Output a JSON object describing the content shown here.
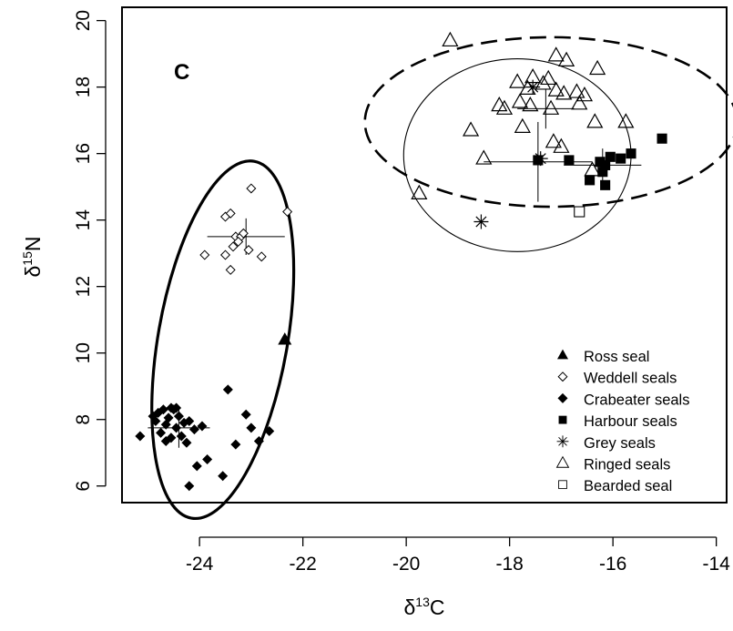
{
  "chart_data": {
    "type": "scatter",
    "panel_label": "C",
    "xlabel": {
      "base": "δ",
      "sup": "13",
      "rest": "C"
    },
    "ylabel": {
      "base": "δ",
      "sup": "15",
      "rest": "N"
    },
    "xlim": [
      -25.5,
      -13.8
    ],
    "ylim": [
      5.5,
      20.4
    ],
    "xticks": [
      -24,
      -22,
      -20,
      -18,
      -16,
      -14
    ],
    "yticks": [
      6,
      8,
      10,
      12,
      14,
      16,
      18,
      20
    ],
    "grid": false,
    "legend_position": "bottom-right",
    "series": [
      {
        "name": "Ross seal",
        "marker": "filled-triangle",
        "points": [
          [
            -22.35,
            10.4
          ]
        ]
      },
      {
        "name": "Weddell seals",
        "marker": "open-diamond",
        "points": [
          [
            -23.0,
            14.95
          ],
          [
            -22.3,
            14.25
          ],
          [
            -23.5,
            14.1
          ],
          [
            -23.4,
            14.2
          ],
          [
            -23.3,
            13.5
          ],
          [
            -23.2,
            13.5
          ],
          [
            -23.15,
            13.6
          ],
          [
            -23.35,
            13.2
          ],
          [
            -23.05,
            13.1
          ],
          [
            -23.9,
            12.95
          ],
          [
            -23.5,
            12.95
          ],
          [
            -22.8,
            12.9
          ],
          [
            -23.4,
            12.5
          ],
          [
            -23.25,
            13.35
          ]
        ]
      },
      {
        "name": "Crabeater seals",
        "marker": "filled-diamond",
        "points": [
          [
            -25.15,
            7.5
          ],
          [
            -24.9,
            8.1
          ],
          [
            -24.85,
            7.95
          ],
          [
            -24.8,
            8.2
          ],
          [
            -24.75,
            7.6
          ],
          [
            -24.7,
            8.3
          ],
          [
            -24.65,
            7.85
          ],
          [
            -24.6,
            8.05
          ],
          [
            -24.55,
            7.45
          ],
          [
            -24.5,
            8.3
          ],
          [
            -24.45,
            7.75
          ],
          [
            -24.4,
            8.1
          ],
          [
            -24.35,
            7.5
          ],
          [
            -24.3,
            7.9
          ],
          [
            -24.25,
            7.3
          ],
          [
            -24.55,
            8.35
          ],
          [
            -24.45,
            8.35
          ],
          [
            -24.65,
            7.35
          ],
          [
            -24.2,
            7.95
          ],
          [
            -24.1,
            7.7
          ],
          [
            -24.05,
            6.6
          ],
          [
            -23.85,
            6.8
          ],
          [
            -23.45,
            8.9
          ],
          [
            -23.3,
            7.25
          ],
          [
            -23.1,
            8.15
          ],
          [
            -23.0,
            7.75
          ],
          [
            -22.85,
            7.35
          ],
          [
            -22.65,
            7.65
          ],
          [
            -23.55,
            6.3
          ],
          [
            -24.2,
            6.0
          ],
          [
            -23.95,
            7.8
          ]
        ]
      },
      {
        "name": "Harbour seals",
        "marker": "filled-square",
        "points": [
          [
            -15.05,
            16.45
          ],
          [
            -15.65,
            16.0
          ],
          [
            -15.85,
            15.85
          ],
          [
            -16.05,
            15.9
          ],
          [
            -16.15,
            15.65
          ],
          [
            -16.2,
            15.45
          ],
          [
            -16.15,
            15.05
          ],
          [
            -16.45,
            15.2
          ],
          [
            -16.25,
            15.75
          ],
          [
            -16.85,
            15.8
          ],
          [
            -17.45,
            15.8
          ]
        ]
      },
      {
        "name": "Grey seals",
        "marker": "asterisk",
        "points": [
          [
            -18.55,
            13.95
          ],
          [
            -17.55,
            18.0
          ],
          [
            -17.4,
            15.85
          ]
        ]
      },
      {
        "name": "Ringed seals",
        "marker": "open-triangle",
        "points": [
          [
            -19.15,
            19.4
          ],
          [
            -17.1,
            18.95
          ],
          [
            -16.9,
            18.8
          ],
          [
            -16.3,
            18.55
          ],
          [
            -17.55,
            18.3
          ],
          [
            -17.25,
            18.25
          ],
          [
            -17.85,
            18.15
          ],
          [
            -17.35,
            18.1
          ],
          [
            -17.65,
            17.95
          ],
          [
            -17.1,
            17.9
          ],
          [
            -16.95,
            17.8
          ],
          [
            -16.7,
            17.85
          ],
          [
            -16.55,
            17.75
          ],
          [
            -17.8,
            17.55
          ],
          [
            -17.6,
            17.45
          ],
          [
            -16.65,
            17.5
          ],
          [
            -18.2,
            17.45
          ],
          [
            -18.1,
            17.35
          ],
          [
            -17.2,
            17.35
          ],
          [
            -16.35,
            16.95
          ],
          [
            -15.75,
            16.95
          ],
          [
            -17.75,
            16.8
          ],
          [
            -18.75,
            16.7
          ],
          [
            -17.15,
            16.35
          ],
          [
            -17.0,
            16.2
          ],
          [
            -18.5,
            15.85
          ],
          [
            -16.4,
            15.5
          ],
          [
            -19.75,
            14.8
          ]
        ]
      },
      {
        "name": "Bearded seal",
        "marker": "open-square",
        "points": [
          [
            -16.65,
            14.25
          ]
        ]
      }
    ],
    "error_crosses": [
      {
        "cx": -23.1,
        "cy": 13.5,
        "x_half": 0.75,
        "y_half": 0.55
      },
      {
        "cx": -24.4,
        "cy": 7.75,
        "x_half": 0.6,
        "y_half": 0.6
      },
      {
        "cx": -17.45,
        "cy": 15.75,
        "x_half": 1.05,
        "y_half": 1.2
      },
      {
        "cx": -17.3,
        "cy": 17.35,
        "x_half": 0.55,
        "y_half": 0.6
      },
      {
        "cx": -16.2,
        "cy": 15.65,
        "x_half": 0.75,
        "y_half": 0.5
      }
    ],
    "ellipses": [
      {
        "style": "solid-thick",
        "cx": -23.55,
        "cy": 10.4,
        "rx": 1.25,
        "ry": 5.45,
        "rotate_deg": 10
      },
      {
        "style": "dashed",
        "cx": -17.2,
        "cy": 16.95,
        "rx": 3.6,
        "ry": 2.55,
        "rotate_deg": 0
      },
      {
        "style": "solid-thin",
        "cx": -17.85,
        "cy": 15.95,
        "rx": 2.2,
        "ry": 2.9,
        "rotate_deg": 0
      }
    ]
  }
}
